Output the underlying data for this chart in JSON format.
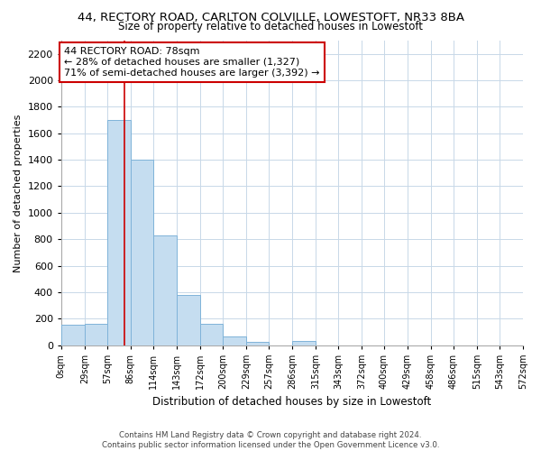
{
  "title_line1": "44, RECTORY ROAD, CARLTON COLVILLE, LOWESTOFT, NR33 8BA",
  "title_line2": "Size of property relative to detached houses in Lowestoft",
  "xlabel": "Distribution of detached houses by size in Lowestoft",
  "ylabel": "Number of detached properties",
  "bar_edges": [
    0,
    29,
    57,
    86,
    114,
    143,
    172,
    200,
    229,
    257,
    286,
    315,
    343,
    372,
    400,
    429,
    458,
    486,
    515,
    543,
    572
  ],
  "bar_heights": [
    155,
    160,
    1700,
    1400,
    830,
    380,
    160,
    65,
    25,
    0,
    30,
    0,
    0,
    0,
    0,
    0,
    0,
    0,
    0,
    0
  ],
  "bar_color": "#c5ddf0",
  "bar_edgecolor": "#7fb3d9",
  "property_line_x": 78,
  "property_line_color": "#cc0000",
  "annotation_text": "44 RECTORY ROAD: 78sqm\n← 28% of detached houses are smaller (1,327)\n71% of semi-detached houses are larger (3,392) →",
  "annotation_box_color": "white",
  "annotation_box_edgecolor": "#cc0000",
  "ylim": [
    0,
    2300
  ],
  "yticks": [
    0,
    200,
    400,
    600,
    800,
    1000,
    1200,
    1400,
    1600,
    1800,
    2000,
    2200
  ],
  "tick_labels": [
    "0sqm",
    "29sqm",
    "57sqm",
    "86sqm",
    "114sqm",
    "143sqm",
    "172sqm",
    "200sqm",
    "229sqm",
    "257sqm",
    "286sqm",
    "315sqm",
    "343sqm",
    "372sqm",
    "400sqm",
    "429sqm",
    "458sqm",
    "486sqm",
    "515sqm",
    "543sqm",
    "572sqm"
  ],
  "footer_text": "Contains HM Land Registry data © Crown copyright and database right 2024.\nContains public sector information licensed under the Open Government Licence v3.0.",
  "background_color": "#ffffff",
  "grid_color": "#c8d8e8"
}
